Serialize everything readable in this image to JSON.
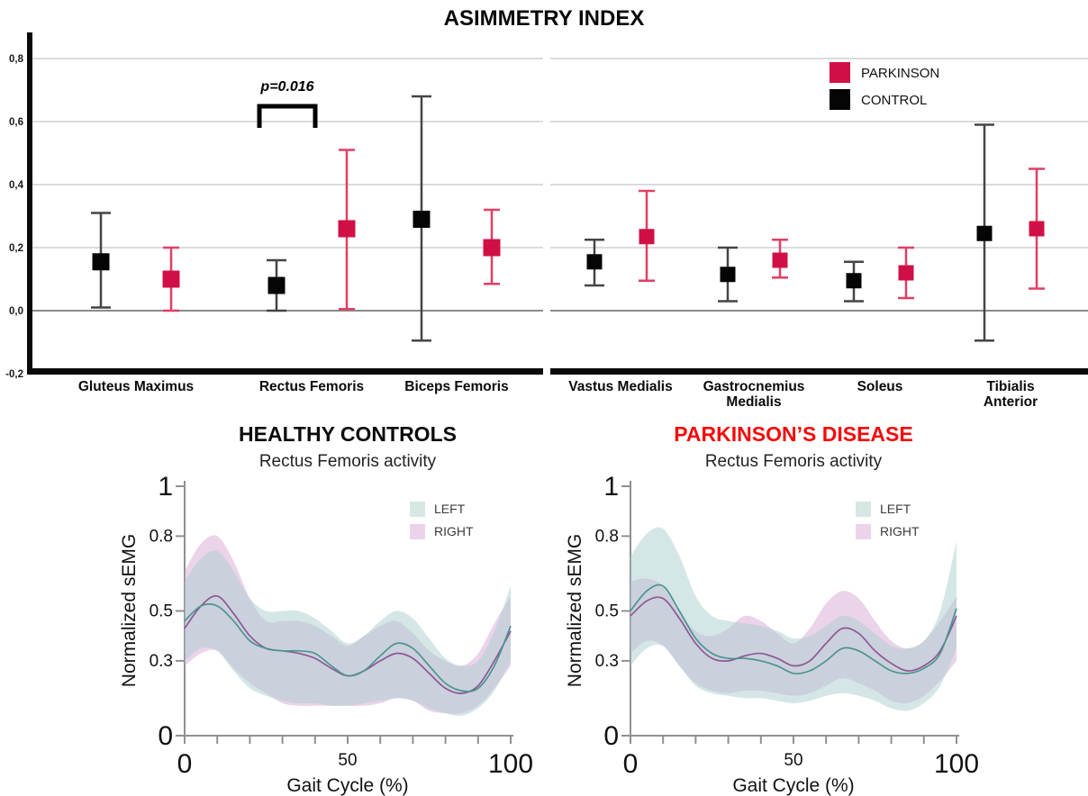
{
  "chart_data": [
    {
      "type": "errorbar",
      "title": "ASIMMETRY INDEX",
      "categories": [
        "Gluteus Maximus",
        "Rectus Femoris",
        "Biceps Femoris",
        "Vastus Medialis",
        "Gastrocnemius Medialis",
        "Soleus",
        "Tibialis Anterior"
      ],
      "ylim": [
        -0.2,
        0.85
      ],
      "y_ticks": [
        {
          "label": "0,8",
          "value": 0.8
        },
        {
          "label": "0,6",
          "value": 0.6
        },
        {
          "label": "0,4",
          "value": 0.4
        },
        {
          "label": "0,2",
          "value": 0.2
        },
        {
          "label": "0,0",
          "value": 0.0
        },
        {
          "label": "-0,2",
          "value": -0.2
        }
      ],
      "panel_break_after": "Biceps Femoris",
      "legend_position": "top-right",
      "annotation": {
        "text": "p=0.016",
        "category": "Rectus Femoris"
      },
      "series": [
        {
          "name": "CONTROL",
          "marker_color": "#050505",
          "bar_color": "#454545",
          "points": [
            {
              "mean": 0.155,
              "lo": 0.01,
              "hi": 0.31
            },
            {
              "mean": 0.08,
              "lo": 0.0,
              "hi": 0.16
            },
            {
              "mean": 0.29,
              "lo": -0.095,
              "hi": 0.68
            },
            {
              "mean": 0.155,
              "lo": 0.08,
              "hi": 0.225
            },
            {
              "mean": 0.115,
              "lo": 0.03,
              "hi": 0.2
            },
            {
              "mean": 0.095,
              "lo": 0.03,
              "hi": 0.155
            },
            {
              "mean": 0.245,
              "lo": -0.095,
              "hi": 0.59
            }
          ]
        },
        {
          "name": "PARKINSON",
          "marker_color": "#D01045",
          "bar_color": "#E23E63",
          "points": [
            {
              "mean": 0.1,
              "lo": 0.0,
              "hi": 0.2
            },
            {
              "mean": 0.26,
              "lo": 0.005,
              "hi": 0.51
            },
            {
              "mean": 0.2,
              "lo": 0.085,
              "hi": 0.32
            },
            {
              "mean": 0.235,
              "lo": 0.095,
              "hi": 0.38
            },
            {
              "mean": 0.16,
              "lo": 0.105,
              "hi": 0.225
            },
            {
              "mean": 0.12,
              "lo": 0.04,
              "hi": 0.2
            },
            {
              "mean": 0.26,
              "lo": 0.07,
              "hi": 0.45
            }
          ]
        }
      ]
    },
    {
      "type": "line-band",
      "title": "HEALTHY CONTROLS",
      "title_color": "#0b0b0b",
      "subtitle": "Rectus Femoris activity",
      "xlabel": "Gait Cycle (%)",
      "ylabel": "Normalized sEMG",
      "xlim": [
        0,
        100
      ],
      "ylim": [
        0,
        1
      ],
      "y_ticks": [
        {
          "label": "1",
          "value": 1,
          "big": true
        },
        {
          "label": "0.8",
          "value": 0.8,
          "big": false
        },
        {
          "label": "0.5",
          "value": 0.5,
          "big": false
        },
        {
          "label": "0.3",
          "value": 0.3,
          "big": false
        },
        {
          "label": "0",
          "value": 0,
          "big": true
        }
      ],
      "x_ticks": [
        {
          "label": "0",
          "value": 0,
          "big": true
        },
        {
          "label": "50",
          "value": 50,
          "big": false
        },
        {
          "label": "100",
          "value": 100,
          "big": true
        }
      ],
      "minor_x_tick_step": 10,
      "x": [
        0,
        5,
        10,
        15,
        20,
        25,
        30,
        35,
        40,
        45,
        50,
        55,
        60,
        65,
        70,
        75,
        80,
        85,
        90,
        95,
        100
      ],
      "series": [
        {
          "name": "RIGHT",
          "line_color": "#8E5796",
          "band_color": "rgba(215,167,213,0.5)",
          "swatch": "#ECD3EA",
          "mean": [
            0.43,
            0.52,
            0.56,
            0.49,
            0.4,
            0.35,
            0.34,
            0.33,
            0.31,
            0.27,
            0.24,
            0.26,
            0.3,
            0.33,
            0.31,
            0.25,
            0.19,
            0.17,
            0.2,
            0.3,
            0.42
          ],
          "upper": [
            0.66,
            0.77,
            0.8,
            0.7,
            0.55,
            0.46,
            0.46,
            0.46,
            0.44,
            0.4,
            0.36,
            0.4,
            0.44,
            0.46,
            0.41,
            0.34,
            0.3,
            0.28,
            0.33,
            0.45,
            0.56
          ],
          "lower": [
            0.28,
            0.33,
            0.34,
            0.27,
            0.21,
            0.17,
            0.13,
            0.12,
            0.12,
            0.12,
            0.12,
            0.12,
            0.13,
            0.15,
            0.14,
            0.1,
            0.09,
            0.09,
            0.12,
            0.19,
            0.28
          ]
        },
        {
          "name": "LEFT",
          "line_color": "#4D9490",
          "band_color": "rgba(169,207,205,0.5)",
          "swatch": "#D6E7E5",
          "mean": [
            0.46,
            0.52,
            0.52,
            0.46,
            0.38,
            0.35,
            0.34,
            0.34,
            0.33,
            0.28,
            0.24,
            0.26,
            0.32,
            0.37,
            0.35,
            0.28,
            0.21,
            0.18,
            0.19,
            0.28,
            0.44
          ],
          "upper": [
            0.62,
            0.71,
            0.74,
            0.66,
            0.55,
            0.5,
            0.5,
            0.5,
            0.47,
            0.42,
            0.37,
            0.4,
            0.46,
            0.5,
            0.47,
            0.39,
            0.31,
            0.28,
            0.3,
            0.42,
            0.6
          ],
          "lower": [
            0.3,
            0.35,
            0.34,
            0.26,
            0.19,
            0.16,
            0.14,
            0.13,
            0.13,
            0.12,
            0.12,
            0.13,
            0.14,
            0.15,
            0.14,
            0.11,
            0.09,
            0.08,
            0.11,
            0.18,
            0.3
          ]
        }
      ]
    },
    {
      "type": "line-band",
      "title": "PARKINSON’S DISEASE",
      "title_color": "#F60909",
      "subtitle": "Rectus Femoris activity",
      "xlabel": "Gait Cycle (%)",
      "ylabel": "Normalized sEMG",
      "xlim": [
        0,
        100
      ],
      "ylim": [
        0,
        1
      ],
      "y_ticks": [
        {
          "label": "1",
          "value": 1,
          "big": true
        },
        {
          "label": "0.8",
          "value": 0.8,
          "big": false
        },
        {
          "label": "0.5",
          "value": 0.5,
          "big": false
        },
        {
          "label": "0.3",
          "value": 0.3,
          "big": false
        },
        {
          "label": "0",
          "value": 0,
          "big": true
        }
      ],
      "x_ticks": [
        {
          "label": "0",
          "value": 0,
          "big": true
        },
        {
          "label": "50",
          "value": 50,
          "big": false
        },
        {
          "label": "100",
          "value": 100,
          "big": true
        }
      ],
      "minor_x_tick_step": 10,
      "x": [
        0,
        5,
        10,
        15,
        20,
        25,
        30,
        35,
        40,
        45,
        50,
        55,
        60,
        65,
        70,
        75,
        80,
        85,
        90,
        95,
        100
      ],
      "series": [
        {
          "name": "RIGHT",
          "line_color": "#8E5796",
          "band_color": "rgba(215,167,213,0.5)",
          "swatch": "#ECD3EA",
          "mean": [
            0.48,
            0.54,
            0.55,
            0.47,
            0.37,
            0.31,
            0.3,
            0.32,
            0.33,
            0.31,
            0.28,
            0.3,
            0.37,
            0.43,
            0.41,
            0.34,
            0.29,
            0.26,
            0.28,
            0.34,
            0.48
          ],
          "upper": [
            0.62,
            0.63,
            0.6,
            0.5,
            0.42,
            0.4,
            0.43,
            0.48,
            0.46,
            0.41,
            0.37,
            0.43,
            0.53,
            0.58,
            0.55,
            0.46,
            0.38,
            0.35,
            0.38,
            0.46,
            0.56
          ],
          "lower": [
            0.33,
            0.38,
            0.36,
            0.28,
            0.21,
            0.18,
            0.17,
            0.18,
            0.18,
            0.17,
            0.16,
            0.17,
            0.2,
            0.23,
            0.21,
            0.18,
            0.14,
            0.13,
            0.16,
            0.22,
            0.3
          ]
        },
        {
          "name": "LEFT",
          "line_color": "#4D9490",
          "band_color": "rgba(169,207,205,0.5)",
          "swatch": "#D6E7E5",
          "mean": [
            0.5,
            0.58,
            0.6,
            0.5,
            0.39,
            0.33,
            0.31,
            0.31,
            0.3,
            0.28,
            0.25,
            0.26,
            0.3,
            0.35,
            0.34,
            0.3,
            0.26,
            0.25,
            0.27,
            0.33,
            0.51
          ],
          "upper": [
            0.72,
            0.81,
            0.83,
            0.72,
            0.56,
            0.48,
            0.46,
            0.45,
            0.44,
            0.42,
            0.39,
            0.4,
            0.44,
            0.48,
            0.46,
            0.41,
            0.36,
            0.35,
            0.38,
            0.5,
            0.78
          ],
          "lower": [
            0.28,
            0.35,
            0.36,
            0.28,
            0.2,
            0.17,
            0.16,
            0.15,
            0.15,
            0.14,
            0.13,
            0.14,
            0.16,
            0.17,
            0.16,
            0.14,
            0.11,
            0.1,
            0.13,
            0.2,
            0.35
          ]
        }
      ]
    }
  ]
}
